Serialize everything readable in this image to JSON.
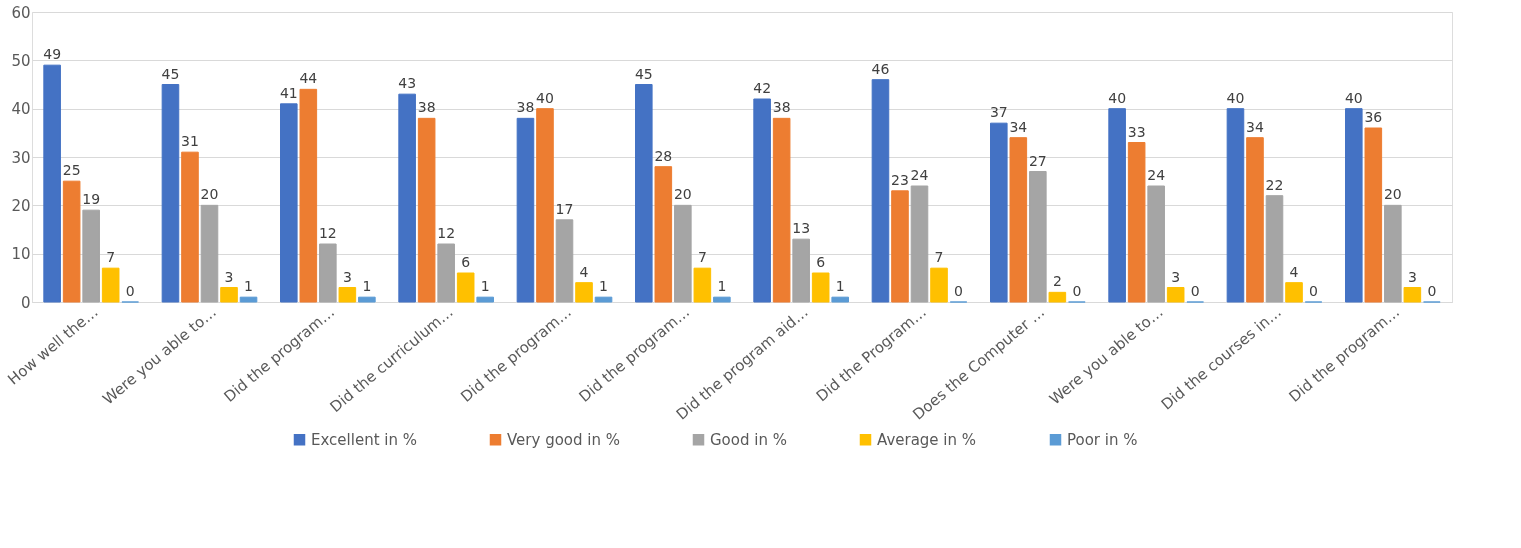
{
  "chart_data": {
    "type": "bar",
    "categories": [
      "How well the…",
      "Were you able to…",
      "Did the program…",
      "Did the curriculum…",
      "Did the program…",
      "Did the program…",
      "Did the program aid…",
      "Did the Program…",
      "Does the Computer …",
      "Were you able to…",
      "Did the courses in…",
      "Did the program…"
    ],
    "series": [
      {
        "name": "Excellent in %",
        "color": "#4472c4",
        "values": [
          49,
          45,
          41,
          43,
          38,
          45,
          42,
          46,
          37,
          40,
          40,
          40
        ]
      },
      {
        "name": "Very good in %",
        "color": "#ed7d31",
        "values": [
          25,
          31,
          44,
          38,
          40,
          28,
          38,
          23,
          34,
          33,
          34,
          36
        ]
      },
      {
        "name": "Good in %",
        "color": "#a5a5a5",
        "values": [
          19,
          20,
          12,
          12,
          17,
          20,
          13,
          24,
          27,
          24,
          22,
          20
        ]
      },
      {
        "name": "Average in %",
        "color": "#ffc000",
        "values": [
          7,
          3,
          3,
          6,
          4,
          7,
          6,
          7,
          2,
          3,
          4,
          3
        ]
      },
      {
        "name": "Poor in %",
        "color": "#5b9bd5",
        "values": [
          0,
          1,
          1,
          1,
          1,
          1,
          1,
          0,
          0,
          0,
          0,
          0
        ]
      }
    ],
    "ylim": [
      0,
      60
    ],
    "yticks": [
      0,
      10,
      20,
      30,
      40,
      50,
      60
    ],
    "grid": "y",
    "legend": "bottom",
    "data_labels": true
  }
}
